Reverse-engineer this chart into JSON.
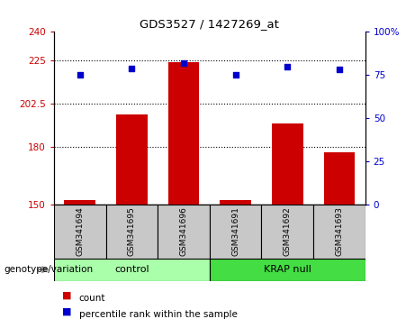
{
  "title": "GDS3527 / 1427269_at",
  "samples": [
    "GSM341694",
    "GSM341695",
    "GSM341696",
    "GSM341691",
    "GSM341692",
    "GSM341693"
  ],
  "groups": [
    "control",
    "control",
    "control",
    "KRAP null",
    "KRAP null",
    "KRAP null"
  ],
  "bar_values": [
    152,
    197,
    224,
    152,
    192,
    177
  ],
  "percentile_values": [
    75,
    79,
    82,
    75,
    80,
    78
  ],
  "bar_color": "#CC0000",
  "dot_color": "#0000CC",
  "ylim_left": [
    150,
    240
  ],
  "ylim_right": [
    0,
    100
  ],
  "yticks_left": [
    150,
    180,
    202.5,
    225,
    240
  ],
  "ytick_labels_left": [
    "150",
    "180",
    "202.5",
    "225",
    "240"
  ],
  "yticks_right": [
    0,
    25,
    50,
    75,
    100
  ],
  "ytick_labels_right": [
    "0",
    "25",
    "50",
    "75",
    "100%"
  ],
  "hlines": [
    180,
    202.5,
    225
  ],
  "group_colors": {
    "control": "#AAFFAA",
    "KRAP null": "#44DD44"
  },
  "group_bg_color": "#C8C8C8",
  "legend_count_color": "#CC0000",
  "legend_dot_color": "#0000CC",
  "xlabel_label": "genotype/variation",
  "bar_width": 0.6
}
